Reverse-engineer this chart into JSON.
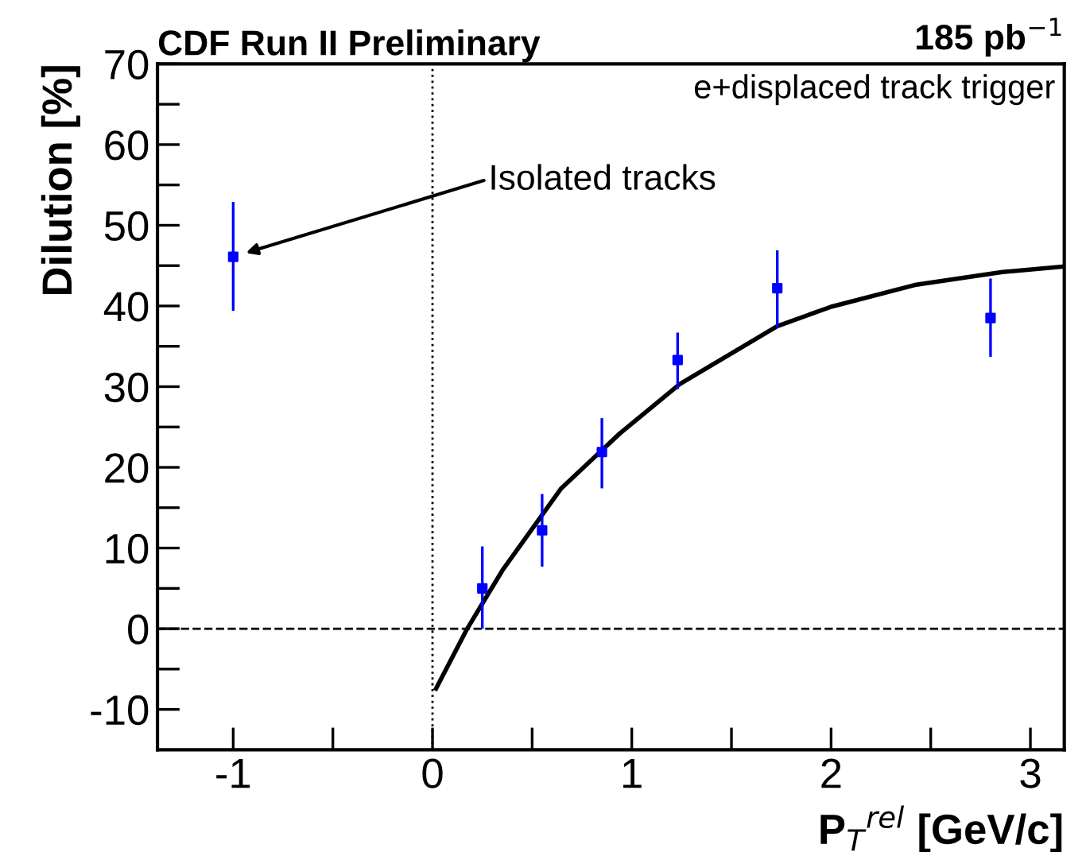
{
  "chart_data": {
    "type": "scatter",
    "title": "CDF Run II Preliminary",
    "subtitle": "e+displaced track trigger",
    "xlabel": "P$_{T}$$^{rel}$ [GeV/c]",
    "ylabel": "Dilution [%]",
    "annotations": [
      "185 pb$^{−1}$",
      "Isolated tracks"
    ],
    "xlim": [
      -1.38,
      3.17
    ],
    "ylim": [
      -15,
      70
    ],
    "xticks": [
      -1,
      {
        "value": -0.5,
        "label": null
      },
      0,
      {
        "value": 0.5,
        "label": null
      },
      1,
      {
        "value": 1.5,
        "label": null
      },
      2,
      {
        "value": 2.5,
        "label": null
      },
      3
    ],
    "yticks": [
      -10,
      {
        "value": -5,
        "label": null
      },
      0,
      {
        "value": 5,
        "label": null
      },
      10,
      {
        "value": 15,
        "label": null
      },
      20,
      {
        "value": 25,
        "label": null
      },
      30,
      {
        "value": 35,
        "label": null
      },
      40,
      {
        "value": 45,
        "label": null
      },
      50,
      {
        "value": 55,
        "label": null
      },
      60,
      {
        "value": 65,
        "label": null
      },
      70
    ],
    "grid": false,
    "ref_lines": [
      {
        "axis": "y",
        "value": 0,
        "line_style": "dashed",
        "color": "#000000"
      },
      {
        "axis": "x",
        "value": 0,
        "line_style": "dotted",
        "color": "#000000"
      }
    ],
    "series": [
      {
        "color": "#0000ff",
        "marker": "square",
        "x": [
          -1,
          0.25,
          0.55,
          0.85,
          1.23,
          1.73,
          2.8
        ],
        "values": [
          46.1,
          5.0,
          12.2,
          21.9,
          33.3,
          42.2,
          38.5
        ],
        "errors": [
          [
            39.4,
            52.9
          ],
          [
            0,
            10.2
          ],
          [
            7.7,
            16.7
          ],
          [
            17.4,
            26.1
          ],
          [
            29.7,
            36.7
          ],
          [
            37.3,
            46.9
          ],
          [
            33.7,
            43.4
          ]
        ]
      },
      {
        "type": "line",
        "color": "#000000",
        "line_style": "solid",
        "marker": "none",
        "x": [
          0.018,
          0.174,
          0.35,
          0.646,
          0.94,
          1.24,
          1.73,
          2.0,
          2.42,
          2.86,
          3.17
        ],
        "values": [
          -7.4,
          0,
          7.2,
          17.4,
          24.2,
          30.3,
          37.5,
          39.9,
          42.6,
          44.2,
          44.9
        ]
      }
    ]
  }
}
